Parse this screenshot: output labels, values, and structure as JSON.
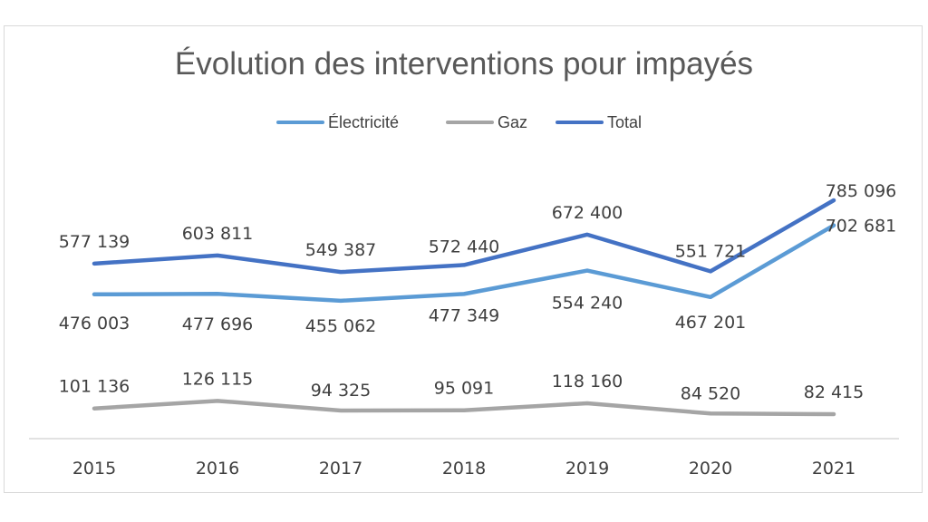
{
  "chart_data": {
    "type": "line",
    "title": "Évolution des interventions pour impayés",
    "categories": [
      "2015",
      "2016",
      "2017",
      "2018",
      "2019",
      "2020",
      "2021"
    ],
    "series": [
      {
        "name": "Électricité",
        "color": "#5b9bd5",
        "values": [
          476003,
          477696,
          455062,
          477349,
          554240,
          467201,
          702681
        ],
        "labels": [
          "476 003",
          "477 696",
          "455 062",
          "477 349",
          "554 240",
          "467 201",
          "702 681"
        ]
      },
      {
        "name": "Gaz",
        "color": "#a5a5a5",
        "values": [
          101136,
          126115,
          94325,
          95091,
          118160,
          84520,
          82415
        ],
        "labels": [
          "101 136",
          "126 115",
          "94 325",
          "95 091",
          "118 160",
          "84 520",
          "82 415"
        ]
      },
      {
        "name": "Total",
        "color": "#4472c4",
        "values": [
          577139,
          603811,
          549387,
          572440,
          672400,
          551721,
          785096
        ],
        "labels": [
          "577 139",
          "603 811",
          "549 387",
          "572 440",
          "672 400",
          "551 721",
          "785 096"
        ]
      }
    ],
    "legend": "top",
    "grid": false,
    "xlabel": "",
    "ylabel": ""
  }
}
